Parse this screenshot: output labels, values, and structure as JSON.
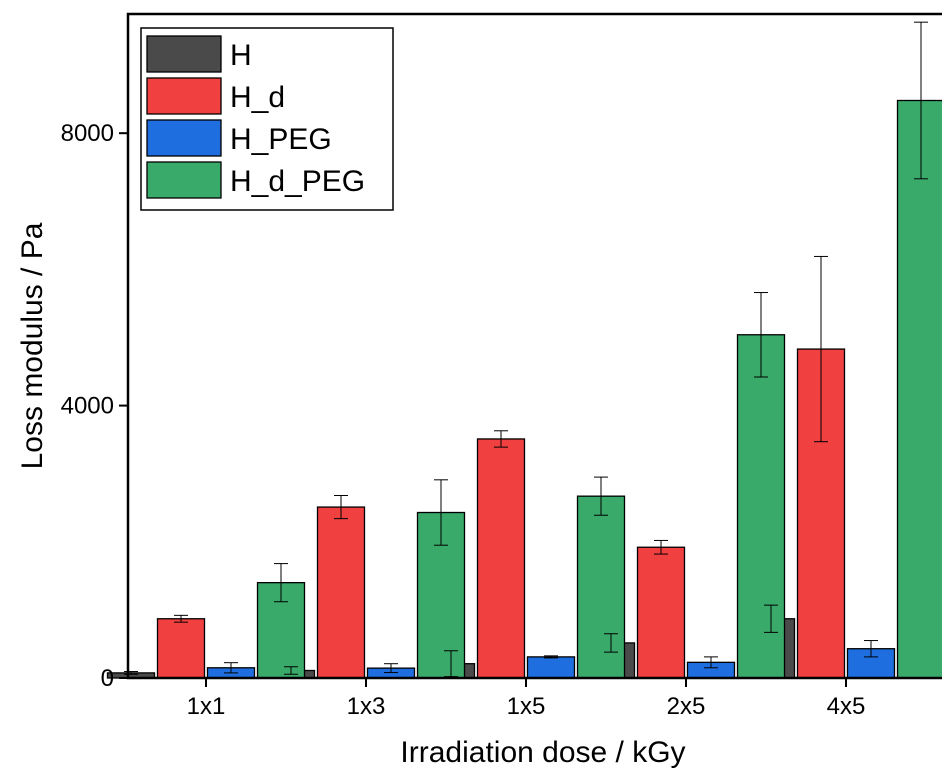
{
  "chart_data": {
    "type": "bar",
    "xlabel": "Irradiation dose / kGy",
    "ylabel": "Loss modulus / Pa",
    "categories": [
      "1x1",
      "1x3",
      "1x5",
      "2x5",
      "4x5"
    ],
    "ylim": [
      0,
      9750
    ],
    "yticks": [
      {
        "value": 0,
        "label": "0"
      },
      {
        "value": 4000,
        "label": "4000"
      },
      {
        "value": 8000,
        "label": "8000"
      }
    ],
    "legend_position": "top-left",
    "series": [
      {
        "name": "H",
        "color": "#4a4a4a",
        "values": [
          75,
          110,
          210,
          515,
          870
        ],
        "errors": [
          20,
          55,
          190,
          135,
          200
        ]
      },
      {
        "name": "H_d",
        "color": "#f04040",
        "values": [
          870,
          2510,
          3510,
          1920,
          4830
        ],
        "errors": [
          50,
          170,
          120,
          100,
          1360
        ]
      },
      {
        "name": "H_PEG",
        "color": "#1f6ee0",
        "values": [
          150,
          145,
          310,
          230,
          430
        ],
        "errors": [
          75,
          65,
          15,
          80,
          120
        ]
      },
      {
        "name": "H_d_PEG",
        "color": "#3aaa6a",
        "values": [
          1400,
          2430,
          2670,
          5040,
          8480
        ],
        "errors": [
          280,
          480,
          280,
          620,
          1150
        ]
      }
    ]
  }
}
